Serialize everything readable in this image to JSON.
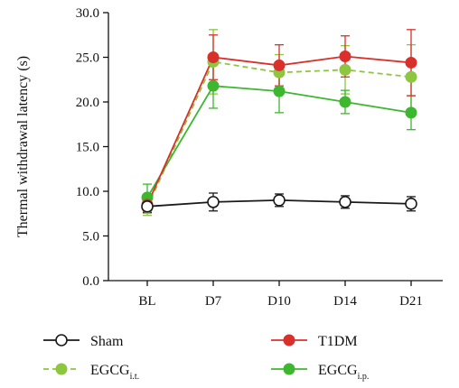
{
  "chart_data": {
    "type": "line",
    "ylabel": "Thermal withdrawal latency (s)",
    "xlabel": "",
    "categories": [
      "BL",
      "D7",
      "D10",
      "D14",
      "D21"
    ],
    "ylim": [
      0,
      30
    ],
    "yticks": [
      "0.0",
      "5.0",
      "10.0",
      "15.0",
      "20.0",
      "25.0",
      "30.0"
    ],
    "grid": false,
    "legend_position": "bottom",
    "series": [
      {
        "name": "Sham",
        "name_main": "Sham",
        "name_sub": "",
        "color": "#1a1a1a",
        "marker": "open-circle",
        "dash": "solid",
        "values": [
          8.3,
          8.8,
          9.0,
          8.8,
          8.6
        ],
        "errors": [
          0.7,
          1.0,
          0.7,
          0.7,
          0.8
        ]
      },
      {
        "name": "T1DM",
        "name_main": "T1DM",
        "name_sub": "",
        "color": "#d9302c",
        "marker": "filled-circle",
        "dash": "solid",
        "values": [
          8.5,
          25.0,
          24.1,
          25.1,
          24.4
        ],
        "errors": [
          0.8,
          2.5,
          2.3,
          2.3,
          3.7
        ]
      },
      {
        "name": "EGCGi.t.",
        "name_main": "EGCG",
        "name_sub": "i.t.",
        "color": "#8dc63f",
        "marker": "filled-circle",
        "dash": "dashed",
        "values": [
          8.2,
          24.5,
          23.3,
          23.6,
          22.8
        ],
        "errors": [
          0.9,
          3.6,
          2.0,
          2.7,
          3.6
        ]
      },
      {
        "name": "EGCGi.p.",
        "name_main": "EGCG",
        "name_sub": "i.p.",
        "color": "#3cb72e",
        "marker": "filled-circle",
        "dash": "solid",
        "values": [
          9.3,
          21.8,
          21.2,
          20.0,
          18.8
        ],
        "errors": [
          1.5,
          2.5,
          2.4,
          1.3,
          1.9
        ]
      }
    ]
  }
}
